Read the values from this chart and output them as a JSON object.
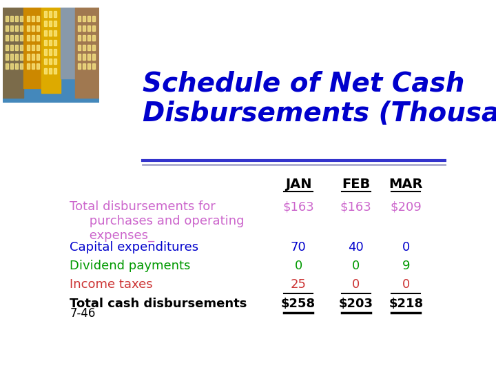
{
  "title_line1": "Schedule of Net Cash",
  "title_line2": "Disbursements (Thousands)",
  "title_color": "#0000CC",
  "title_fontsize": 28,
  "title_style": "italic",
  "title_weight": "bold",
  "header_cols": [
    "JAN",
    "FEB",
    "MAR"
  ],
  "rows": [
    {
      "label": "Total disbursements for\n     purchases and operating\n     expenses_",
      "label_color": "#CC66CC",
      "values": [
        "$163",
        "$163",
        "$209"
      ],
      "value_color": "#CC66CC",
      "underline_values": false,
      "bold": false
    },
    {
      "label": "Capital expenditures",
      "label_color": "#0000CC",
      "values": [
        "70",
        "40",
        "0"
      ],
      "value_color": "#0000CC",
      "underline_values": false,
      "bold": false
    },
    {
      "label": "Dividend payments",
      "label_color": "#009900",
      "values": [
        "0",
        "0",
        "9"
      ],
      "value_color": "#009900",
      "underline_values": false,
      "bold": false
    },
    {
      "label": "Income taxes",
      "label_color": "#CC3333",
      "values": [
        "25",
        "0",
        "0"
      ],
      "value_color": "#CC3333",
      "underline_values": true,
      "bold": false
    },
    {
      "label": "Total cash disbursements",
      "label_color": "#000000",
      "values": [
        "$258",
        "$203",
        "$218"
      ],
      "value_color": "#000000",
      "underline_values": true,
      "bold": true
    }
  ],
  "footer_label": "7-46",
  "background_color": "#FFFFFF",
  "divider_color": "#3333CC",
  "divider_color2": "#AAAACC"
}
